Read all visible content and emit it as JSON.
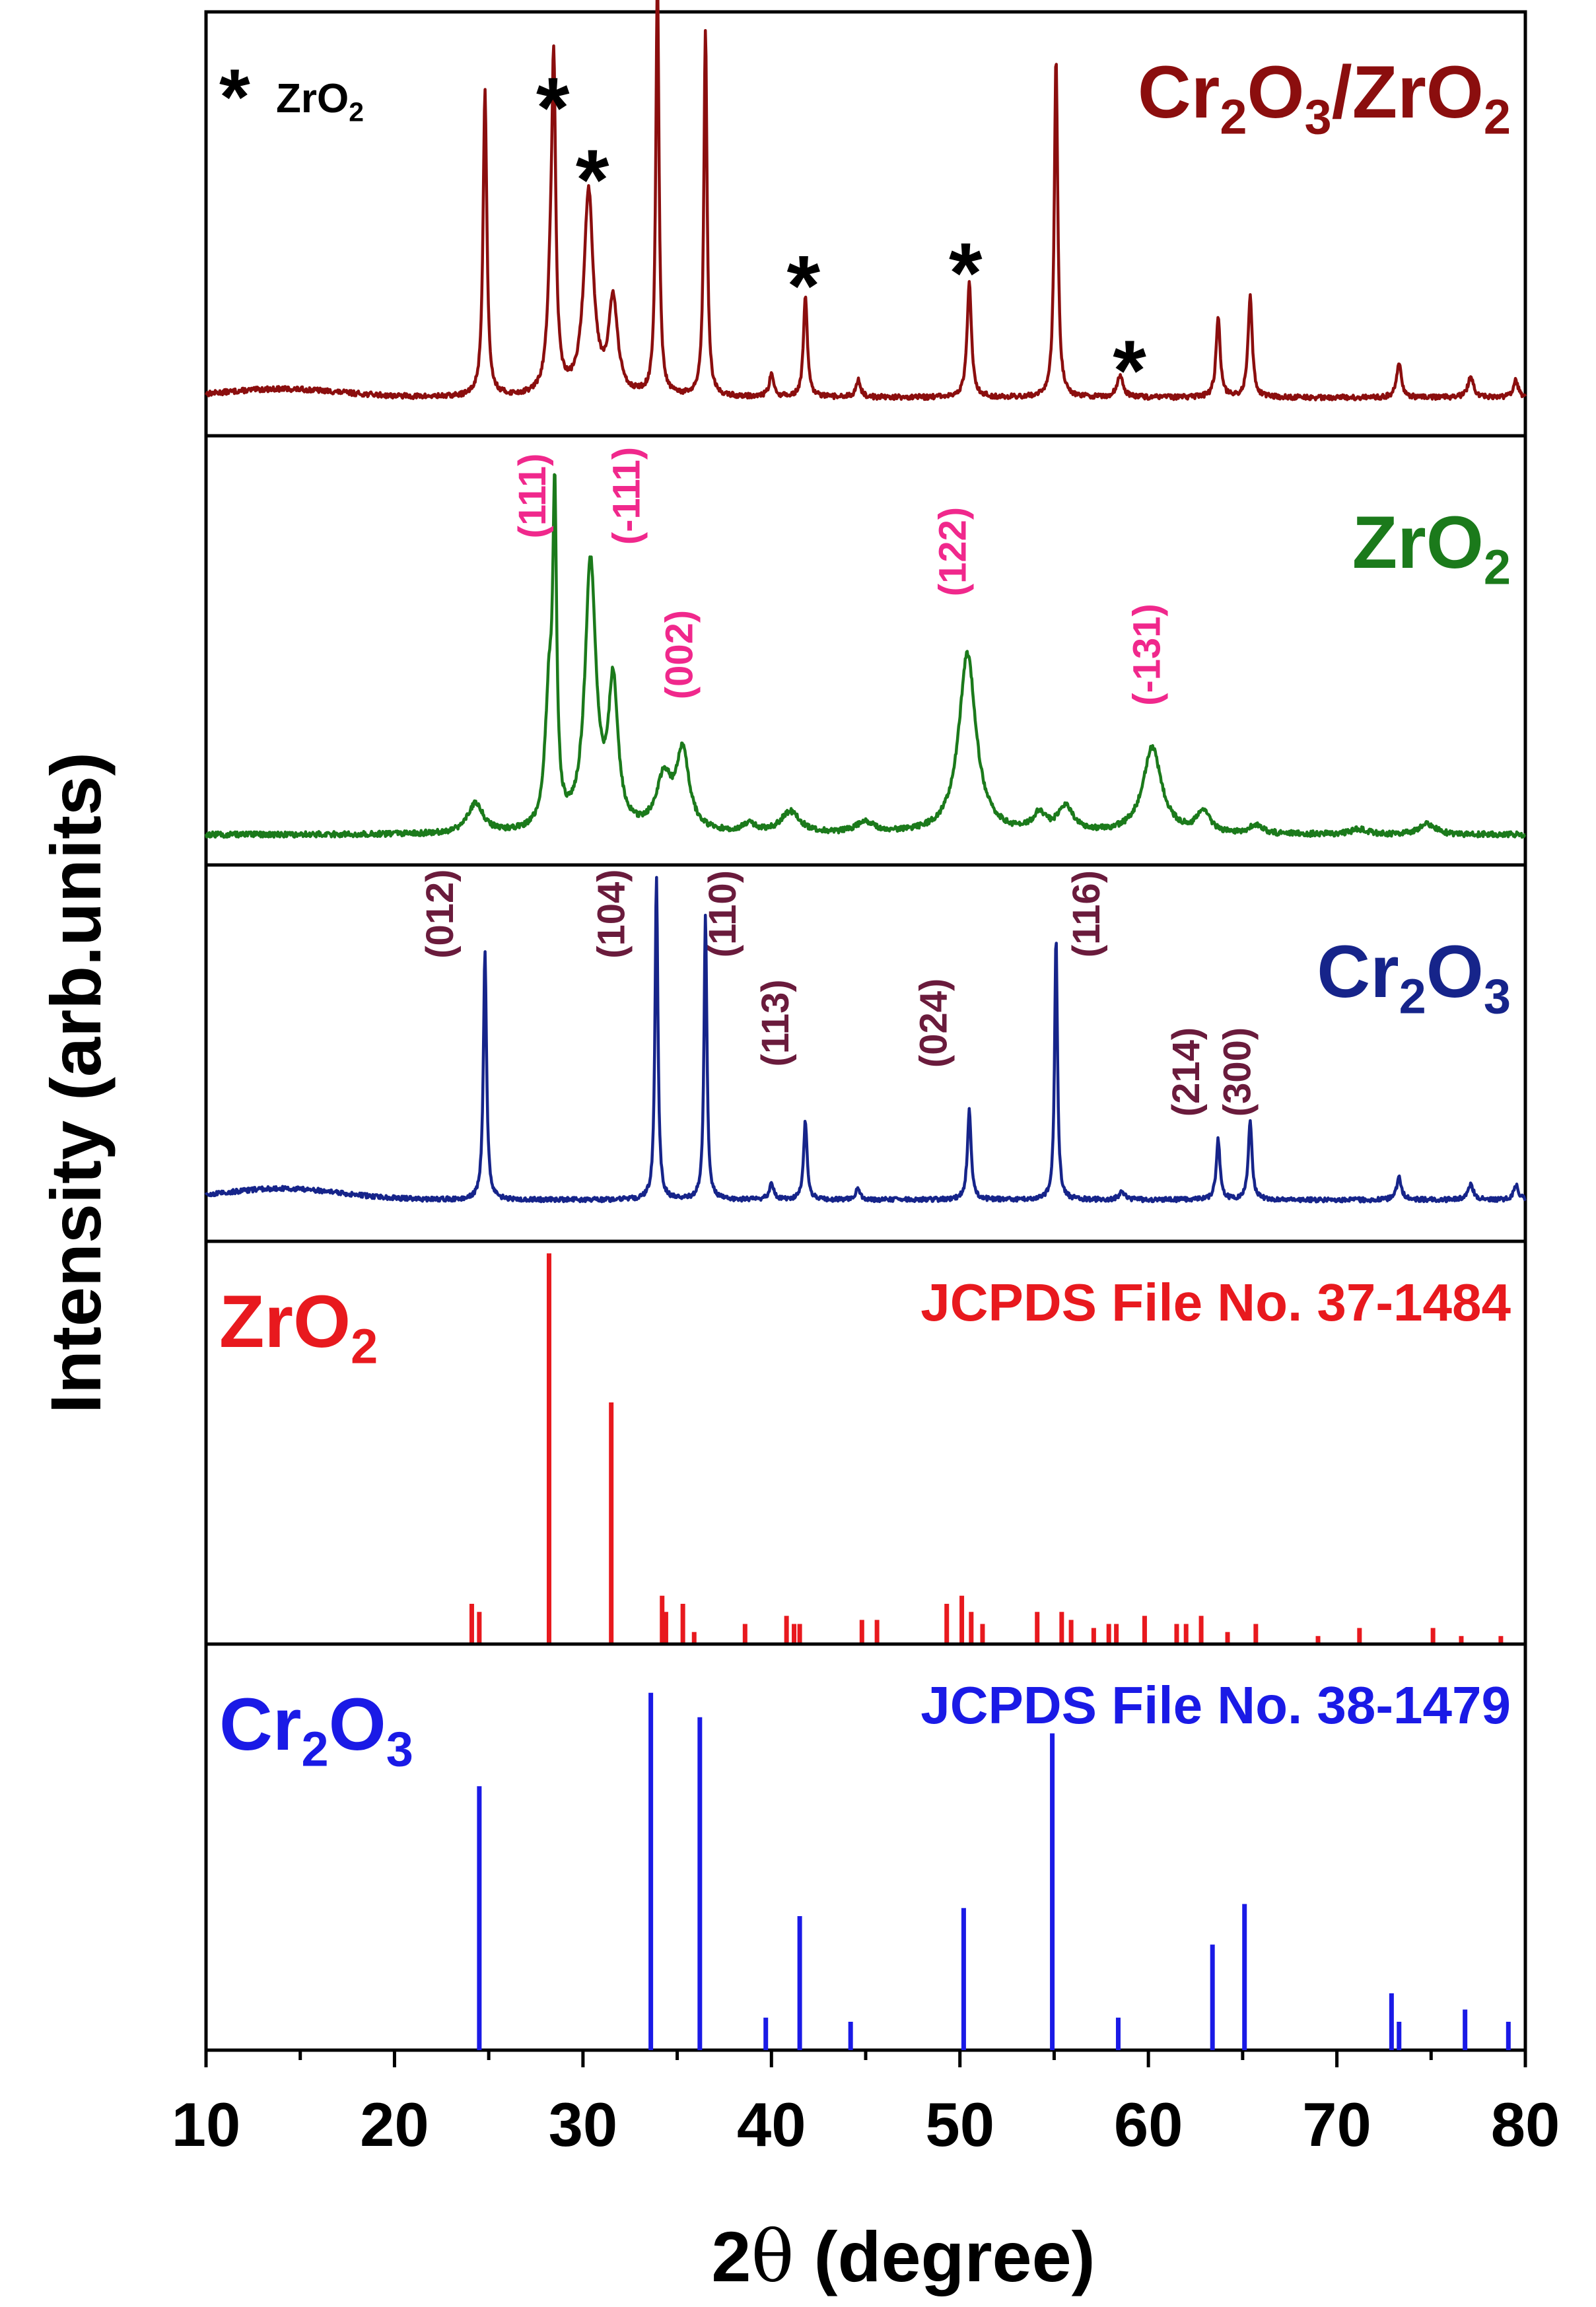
{
  "chart_data": {
    "type": "line",
    "xlabel_prefix": "2",
    "xlabel_theta": "θ",
    "xlabel_suffix": " (degree)",
    "ylabel": "Intensity (arb.units)",
    "xlim": [
      10,
      80
    ],
    "x_ticks": [
      "10",
      "20",
      "30",
      "40",
      "50",
      "60",
      "70",
      "80"
    ],
    "panels": [
      {
        "key": "composite",
        "label": [
          "Cr",
          "2",
          "O",
          "3",
          "/ZrO",
          "2"
        ],
        "label_anchor": "right",
        "color": "#8B0E0E",
        "legend": {
          "symbol": "*",
          "text": [
            "ZrO",
            "2"
          ]
        },
        "baseline": 0.09,
        "noise": 0.012,
        "humps": [
          [
            14,
            0.02,
            4.5
          ]
        ],
        "peaks": [
          [
            24.8,
            0.72,
            0.12
          ],
          [
            28.3,
            0.23,
            0.22
          ],
          [
            28.45,
            0.66,
            0.12
          ],
          [
            30.3,
            0.48,
            0.3
          ],
          [
            31.6,
            0.22,
            0.28
          ],
          [
            33.95,
            0.99,
            0.1
          ],
          [
            36.5,
            0.87,
            0.1
          ],
          [
            40.0,
            0.05,
            0.15
          ],
          [
            41.8,
            0.24,
            0.12
          ],
          [
            44.6,
            0.04,
            0.15
          ],
          [
            50.5,
            0.27,
            0.14
          ],
          [
            55.1,
            0.8,
            0.11
          ],
          [
            58.5,
            0.05,
            0.2
          ],
          [
            63.7,
            0.19,
            0.13
          ],
          [
            65.4,
            0.24,
            0.13
          ],
          [
            73.3,
            0.08,
            0.15
          ],
          [
            77.1,
            0.05,
            0.18
          ],
          [
            79.5,
            0.04,
            0.15
          ]
        ],
        "markers": [
          {
            "x": 28.4,
            "y": 0.79,
            "text": "*"
          },
          {
            "x": 30.5,
            "y": 0.62,
            "text": "*"
          },
          {
            "x": 41.7,
            "y": 0.37,
            "text": "*"
          },
          {
            "x": 50.3,
            "y": 0.4,
            "text": "*"
          },
          {
            "x": 59.0,
            "y": 0.17,
            "text": "*"
          }
        ]
      },
      {
        "key": "zro2_sample",
        "label": [
          "ZrO",
          "2"
        ],
        "label_anchor": "right",
        "color": "#1B7A1B",
        "baseline": 0.07,
        "noise": 0.013,
        "humps": [],
        "peaks": [
          [
            24.3,
            0.07,
            0.5
          ],
          [
            28.2,
            0.3,
            0.25
          ],
          [
            28.5,
            0.7,
            0.12
          ],
          [
            30.4,
            0.62,
            0.35
          ],
          [
            31.6,
            0.33,
            0.3
          ],
          [
            34.3,
            0.12,
            0.5
          ],
          [
            35.3,
            0.18,
            0.4
          ],
          [
            38.8,
            0.02,
            0.4
          ],
          [
            41.0,
            0.05,
            0.6
          ],
          [
            45.0,
            0.025,
            0.6
          ],
          [
            50.4,
            0.42,
            0.55
          ],
          [
            54.2,
            0.04,
            0.4
          ],
          [
            55.6,
            0.06,
            0.5
          ],
          [
            60.2,
            0.2,
            0.6
          ],
          [
            62.9,
            0.05,
            0.4
          ],
          [
            65.7,
            0.02,
            0.4
          ],
          [
            71.2,
            0.012,
            0.5
          ],
          [
            74.8,
            0.025,
            0.5
          ]
        ],
        "annotations": [
          {
            "x": 28.0,
            "y": 0.86,
            "text": "(111)"
          },
          {
            "x": 33.0,
            "y": 0.86,
            "text": "(-111)"
          },
          {
            "x": 35.8,
            "y": 0.49,
            "text": "(002)"
          },
          {
            "x": 50.3,
            "y": 0.73,
            "text": "(122)"
          },
          {
            "x": 60.6,
            "y": 0.49,
            "text": "(-131)"
          }
        ]
      },
      {
        "key": "cr2o3_sample",
        "label": [
          "Cr",
          "2",
          "O",
          "3"
        ],
        "label_anchor": "right",
        "color": "#16248A",
        "baseline": 0.11,
        "noise": 0.012,
        "humps": [
          [
            14,
            0.03,
            4.5
          ]
        ],
        "peaks": [
          [
            24.8,
            0.66,
            0.1
          ],
          [
            33.9,
            0.86,
            0.09
          ],
          [
            36.5,
            0.76,
            0.09
          ],
          [
            40.0,
            0.04,
            0.15
          ],
          [
            41.8,
            0.21,
            0.11
          ],
          [
            44.6,
            0.03,
            0.15
          ],
          [
            50.5,
            0.24,
            0.12
          ],
          [
            55.1,
            0.7,
            0.09
          ],
          [
            58.6,
            0.02,
            0.2
          ],
          [
            63.7,
            0.16,
            0.12
          ],
          [
            65.4,
            0.21,
            0.12
          ],
          [
            73.3,
            0.06,
            0.15
          ],
          [
            77.1,
            0.04,
            0.18
          ],
          [
            79.5,
            0.04,
            0.15
          ]
        ],
        "annotations": [
          {
            "x": 23.1,
            "y": 0.87,
            "text": "(012)"
          },
          {
            "x": 32.2,
            "y": 0.87,
            "text": "(104)"
          },
          {
            "x": 38.1,
            "y": 0.87,
            "text": "(110)"
          },
          {
            "x": 40.9,
            "y": 0.58,
            "text": "(113)"
          },
          {
            "x": 49.3,
            "y": 0.58,
            "text": "(024)"
          },
          {
            "x": 57.4,
            "y": 0.87,
            "text": "(116)"
          },
          {
            "x": 62.7,
            "y": 0.45,
            "text": "(214)"
          },
          {
            "x": 65.4,
            "y": 0.45,
            "text": "(300)"
          }
        ]
      },
      {
        "key": "zro2_reference",
        "label": [
          "ZrO",
          "2"
        ],
        "label_anchor": "left",
        "ref_text": "JCPDS File No. 37-1484",
        "color": "#E8191E",
        "sticks": [
          [
            24.1,
            0.1
          ],
          [
            24.5,
            0.08
          ],
          [
            28.2,
            0.97
          ],
          [
            31.5,
            0.6
          ],
          [
            34.2,
            0.12
          ],
          [
            34.4,
            0.08
          ],
          [
            35.3,
            0.1
          ],
          [
            35.9,
            0.03
          ],
          [
            38.6,
            0.05
          ],
          [
            40.8,
            0.07
          ],
          [
            41.2,
            0.05
          ],
          [
            41.5,
            0.05
          ],
          [
            44.8,
            0.06
          ],
          [
            45.6,
            0.06
          ],
          [
            49.3,
            0.1
          ],
          [
            50.1,
            0.12
          ],
          [
            50.6,
            0.08
          ],
          [
            51.2,
            0.05
          ],
          [
            54.1,
            0.08
          ],
          [
            55.4,
            0.08
          ],
          [
            55.9,
            0.06
          ],
          [
            57.1,
            0.04
          ],
          [
            57.9,
            0.05
          ],
          [
            58.3,
            0.05
          ],
          [
            59.8,
            0.07
          ],
          [
            61.5,
            0.05
          ],
          [
            62.0,
            0.05
          ],
          [
            62.8,
            0.07
          ],
          [
            64.2,
            0.03
          ],
          [
            65.7,
            0.05
          ],
          [
            69.0,
            0.02
          ],
          [
            71.2,
            0.04
          ],
          [
            75.1,
            0.04
          ],
          [
            76.6,
            0.02
          ],
          [
            78.7,
            0.02
          ]
        ]
      },
      {
        "key": "cr2o3_reference",
        "label": [
          "Cr",
          "2",
          "O",
          "3"
        ],
        "label_anchor": "left",
        "ref_text": "JCPDS File No. 38-1479",
        "color": "#1A1AE6",
        "sticks": [
          [
            24.5,
            0.65
          ],
          [
            33.6,
            0.88
          ],
          [
            36.2,
            0.82
          ],
          [
            39.7,
            0.08
          ],
          [
            41.5,
            0.33
          ],
          [
            44.2,
            0.07
          ],
          [
            50.2,
            0.35
          ],
          [
            54.9,
            0.78
          ],
          [
            58.4,
            0.08
          ],
          [
            63.4,
            0.26
          ],
          [
            65.1,
            0.36
          ],
          [
            72.9,
            0.14
          ],
          [
            73.3,
            0.07
          ],
          [
            76.8,
            0.1
          ],
          [
            79.1,
            0.07
          ]
        ]
      }
    ]
  }
}
